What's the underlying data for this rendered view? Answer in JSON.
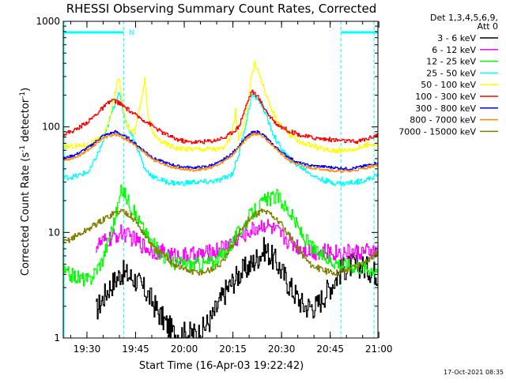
{
  "chart_data": {
    "type": "line",
    "title": "RHESSI Observing Summary Count Rates, Corrected",
    "xlabel": "Start Time (16-Apr-03 19:22:42)",
    "ylabel": "Corrected Count Rate (s⁻¹ detector⁻¹)",
    "y_scale": "log",
    "ylim": [
      1,
      1000
    ],
    "xlim_minutes": [
      0,
      97
    ],
    "x_ticks": [
      {
        "label": "19:30",
        "minute": 7.3
      },
      {
        "label": "19:45",
        "minute": 22.3
      },
      {
        "label": "20:00",
        "minute": 37.3
      },
      {
        "label": "20:15",
        "minute": 52.3
      },
      {
        "label": "20:30",
        "minute": 67.3
      },
      {
        "label": "20:45",
        "minute": 82.3
      },
      {
        "label": "21:00",
        "minute": 97.3
      }
    ],
    "y_ticks": [
      {
        "label": "1",
        "value": 1
      },
      {
        "label": "10",
        "value": 10
      },
      {
        "label": "100",
        "value": 100
      },
      {
        "label": "1000",
        "value": 1000
      }
    ],
    "detector_note": "Det 1,3,4,5,6,9,",
    "attenuator_note": "Att 0",
    "footer_date": "17-Oct-2021 08:35",
    "night_bar_label": "N",
    "night_intervals": [
      {
        "start_minute": 0,
        "end_minute": 18.6
      },
      {
        "start_minute": 85.6,
        "end_minute": 97
      }
    ],
    "event_lines_minutes": [
      18.6,
      85.6,
      95.8
    ],
    "edge_line_minute": 0,
    "series": [
      {
        "name": "3 - 6 keV",
        "color": "#000000",
        "x": [
          10,
          14,
          18,
          22,
          26,
          30,
          34,
          38,
          42,
          46,
          50,
          54,
          58,
          62,
          66,
          70,
          74,
          78,
          82,
          86,
          90,
          94,
          97
        ],
        "values": [
          1.8,
          3.0,
          4.2,
          3.6,
          2.6,
          1.6,
          1.1,
          1.1,
          1.1,
          1.6,
          2.8,
          4.0,
          5.0,
          7.0,
          5.0,
          3.0,
          2.0,
          2.0,
          3.0,
          4.5,
          5.0,
          4.5,
          4.0
        ]
      },
      {
        "name": "6 - 12 keV",
        "color": "#ff00ff",
        "x": [
          10,
          14,
          18,
          22,
          26,
          30,
          34,
          38,
          42,
          46,
          50,
          54,
          58,
          62,
          66,
          70,
          74,
          78,
          82,
          86,
          90,
          94,
          97
        ],
        "values": [
          7.5,
          8.5,
          10,
          8.5,
          7.0,
          6.5,
          6.0,
          6.0,
          6.2,
          6.5,
          7.5,
          9.0,
          10.5,
          12,
          10,
          8.0,
          7.0,
          6.5,
          6.5,
          6.5,
          6.5,
          6.5,
          6.5
        ]
      },
      {
        "name": "12 - 25 keV",
        "color": "#00ff00",
        "x": [
          0,
          4,
          8,
          12,
          16,
          18,
          20,
          22,
          26,
          30,
          34,
          38,
          42,
          46,
          50,
          54,
          58,
          62,
          66,
          70,
          74,
          78,
          82,
          86,
          90,
          94,
          97
        ],
        "values": [
          4.2,
          3.8,
          3.5,
          5.5,
          14,
          26,
          20,
          15,
          9.0,
          6.2,
          5.2,
          5.0,
          5.0,
          5.2,
          6.5,
          10,
          15,
          20,
          22,
          15,
          9.0,
          6.5,
          5.5,
          5.0,
          4.8,
          4.6,
          4.5
        ]
      },
      {
        "name": "25 - 50 keV",
        "color": "#00ffff",
        "x": [
          0,
          4,
          8,
          12,
          15,
          17,
          18,
          19,
          21,
          23,
          25,
          28,
          32,
          36,
          40,
          44,
          48,
          52,
          54,
          56,
          58,
          60,
          62,
          64,
          66,
          70,
          74,
          78,
          82,
          86,
          90,
          94,
          97
        ],
        "values": [
          33,
          34,
          38,
          70,
          140,
          215,
          160,
          115,
          85,
          60,
          40,
          33,
          30,
          29,
          30,
          30,
          31,
          36,
          55,
          100,
          200,
          185,
          140,
          95,
          70,
          48,
          40,
          33,
          30,
          29,
          30,
          32,
          35
        ]
      },
      {
        "name": "50 - 100 keV",
        "color": "#ffff00",
        "x": [
          0,
          4,
          8,
          12,
          14,
          16,
          17,
          18,
          19,
          20,
          22,
          24,
          25,
          26,
          28,
          32,
          36,
          40,
          44,
          48,
          50,
          52,
          53,
          54,
          56,
          58,
          59,
          60,
          62,
          64,
          66,
          70,
          74,
          78,
          82,
          86,
          90,
          94,
          97
        ],
        "values": [
          65,
          66,
          68,
          80,
          110,
          220,
          300,
          180,
          120,
          98,
          90,
          180,
          280,
          130,
          80,
          68,
          62,
          62,
          62,
          62,
          64,
          90,
          140,
          75,
          110,
          320,
          400,
          340,
          220,
          150,
          110,
          82,
          70,
          64,
          60,
          60,
          62,
          68,
          70
        ]
      },
      {
        "name": "100 - 300 keV",
        "color": "#ff0000",
        "x": [
          0,
          4,
          8,
          12,
          15,
          17,
          18,
          20,
          22,
          26,
          30,
          34,
          38,
          42,
          46,
          50,
          54,
          56,
          58,
          60,
          62,
          64,
          66,
          70,
          74,
          78,
          82,
          86,
          90,
          94,
          97
        ],
        "values": [
          85,
          95,
          115,
          150,
          180,
          170,
          160,
          145,
          130,
          110,
          90,
          78,
          72,
          72,
          74,
          80,
          100,
          150,
          220,
          190,
          150,
          120,
          105,
          90,
          82,
          78,
          76,
          74,
          72,
          78,
          85
        ]
      },
      {
        "name": "300 - 800 keV",
        "color": "#0000ff",
        "x": [
          0,
          4,
          8,
          12,
          16,
          18,
          20,
          24,
          28,
          32,
          36,
          40,
          44,
          48,
          52,
          56,
          58,
          60,
          62,
          64,
          68,
          72,
          76,
          80,
          84,
          88,
          92,
          97
        ],
        "values": [
          50,
          55,
          65,
          82,
          90,
          84,
          78,
          62,
          50,
          45,
          42,
          41,
          42,
          46,
          56,
          78,
          88,
          90,
          82,
          70,
          55,
          46,
          43,
          42,
          41,
          40,
          42,
          46
        ]
      },
      {
        "name": "800 - 7000 keV",
        "color": "#ff8800",
        "x": [
          0,
          4,
          8,
          12,
          16,
          18,
          20,
          24,
          28,
          32,
          36,
          40,
          44,
          48,
          52,
          56,
          58,
          60,
          62,
          64,
          68,
          72,
          76,
          80,
          84,
          88,
          92,
          97
        ],
        "values": [
          48,
          52,
          62,
          78,
          85,
          80,
          74,
          60,
          48,
          43,
          40,
          39,
          40,
          44,
          54,
          75,
          85,
          86,
          80,
          68,
          52,
          44,
          41,
          40,
          38,
          38,
          40,
          44
        ]
      },
      {
        "name": "7000 - 15000 keV",
        "color": "#808000",
        "x": [
          0,
          3,
          6,
          9,
          12,
          15,
          18,
          20,
          22,
          25,
          28,
          31,
          34,
          37,
          40,
          43,
          46,
          49,
          52,
          55,
          58,
          61,
          64,
          67,
          70,
          73,
          76,
          79,
          82,
          85,
          88,
          91,
          94,
          97
        ],
        "values": [
          8.0,
          9.0,
          10,
          11.5,
          13,
          15,
          16,
          15,
          13,
          9.5,
          7.0,
          6.0,
          5.0,
          4.5,
          4.2,
          4.2,
          4.5,
          5.2,
          7.5,
          11,
          14,
          16,
          15,
          12,
          9.0,
          6.5,
          5.0,
          4.5,
          4.2,
          4.2,
          4.5,
          5.0,
          5.5,
          6.5
        ]
      }
    ]
  }
}
